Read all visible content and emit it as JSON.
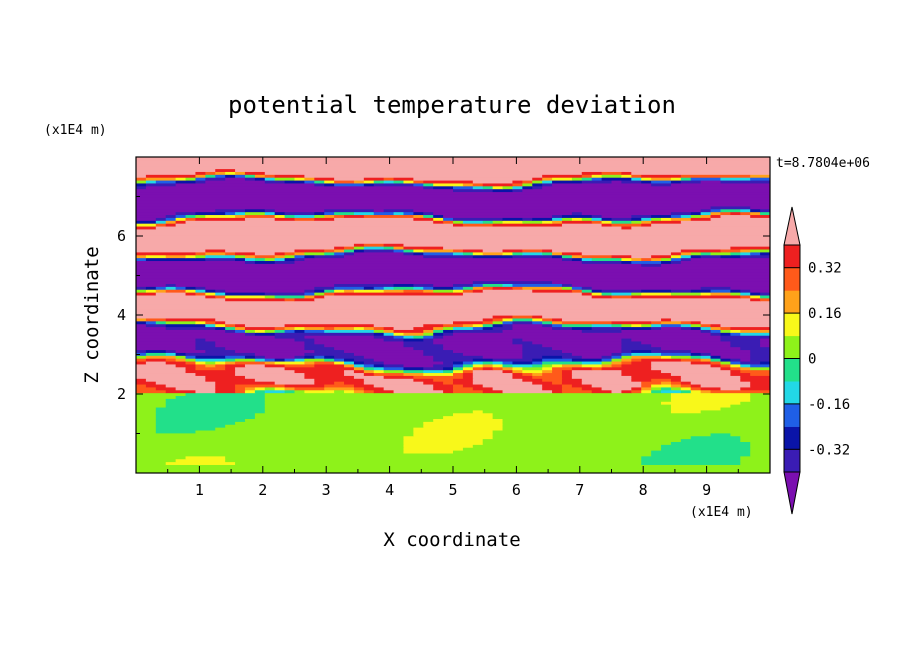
{
  "chart_data": {
    "type": "heatmap",
    "title": "potential temperature deviation",
    "xlabel": "X coordinate",
    "ylabel": "Z coordinate",
    "x_unit": "(x1E4 m)",
    "z_unit": "(x1E4 m)",
    "time_label": "t=8.7804e+06",
    "xlim": [
      0,
      10
    ],
    "ylim": [
      0,
      8
    ],
    "x_ticks": [
      1,
      2,
      3,
      4,
      5,
      6,
      7,
      8,
      9
    ],
    "y_ticks": [
      2,
      4,
      6
    ],
    "colorbar": {
      "levels": [
        -0.4,
        -0.32,
        -0.24,
        -0.16,
        -0.08,
        0,
        0.08,
        0.16,
        0.24,
        0.32,
        0.4
      ],
      "colors": [
        "#7b0fb0",
        "#3a1cb4",
        "#0a14a8",
        "#1f5fe6",
        "#22d8e6",
        "#22e08a",
        "#8ef21a",
        "#f8f81a",
        "#ffa21a",
        "#ff5a1a",
        "#ee2020",
        "#f7a9a9"
      ],
      "tick_labels": [
        "0.32",
        "0.16",
        "0",
        "-0.16",
        "-0.32"
      ],
      "tick_values": [
        0.32,
        0.16,
        0,
        -0.16,
        -0.32
      ]
    },
    "field_description": [
      {
        "z_range": [
          0,
          2
        ],
        "values": "mostly 0 to 0.08, smooth"
      },
      {
        "z_range": [
          2,
          4.5
        ],
        "values": "layered, -0.4 to 0.4"
      },
      {
        "z_range": [
          4.5,
          8
        ],
        "values": "alternating layers of about 0.4 and -0.4"
      }
    ]
  }
}
